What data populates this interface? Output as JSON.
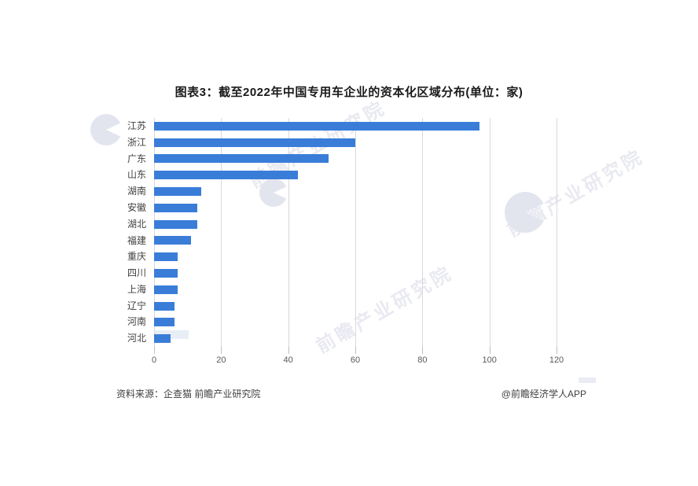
{
  "title": "图表3：截至2022年中国专用车企业的资本化区域分布(单位：家)",
  "chart_data": {
    "type": "bar",
    "orientation": "horizontal",
    "title": "图表3：截至2022年中国专用车企业的资本化区域分布(单位：家)",
    "categories": [
      "江苏",
      "浙江",
      "广东",
      "山东",
      "湖南",
      "安徽",
      "湖北",
      "福建",
      "重庆",
      "四川",
      "上海",
      "辽宁",
      "河南",
      "河北"
    ],
    "values": [
      97,
      60,
      52,
      43,
      14,
      13,
      13,
      11,
      7,
      7,
      7,
      6,
      6,
      5
    ],
    "xlabel": "",
    "ylabel": "",
    "xlim": [
      0,
      120
    ],
    "xticks": [
      0,
      20,
      40,
      60,
      80,
      100,
      120
    ],
    "grid": true,
    "legend": "none",
    "bar_color": "#3a7dd9",
    "gridline_color": "#d9d9d9"
  },
  "footer": {
    "source": "资料来源：企查猫 前瞻产业研究院",
    "credit": "@前瞻经济学人APP"
  },
  "watermark": {
    "text": "前瞻产业研究院",
    "logo": "qianzhan-pacman-logo",
    "text_color": "#e9eaf1",
    "logo_color": "#e3e5ee"
  }
}
